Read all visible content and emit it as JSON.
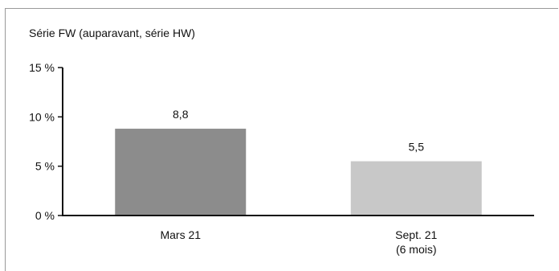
{
  "chart_data": {
    "type": "bar",
    "title": "Série FW (auparavant, série HW)",
    "categories": [
      [
        "Mars 21"
      ],
      [
        "Sept. 21",
        "(6 mois)"
      ]
    ],
    "values": [
      8.8,
      5.5
    ],
    "value_labels": [
      "8,8",
      "5,5"
    ],
    "bar_colors": [
      "#8c8c8c",
      "#c8c8c8"
    ],
    "ylim": [
      0,
      15
    ],
    "yticks": [
      0,
      5,
      10,
      15
    ],
    "ytick_labels": [
      "0 %",
      "5 %",
      "10 %",
      "15 %"
    ],
    "xlabel": "",
    "ylabel": "",
    "grid": false,
    "legend": "none"
  }
}
